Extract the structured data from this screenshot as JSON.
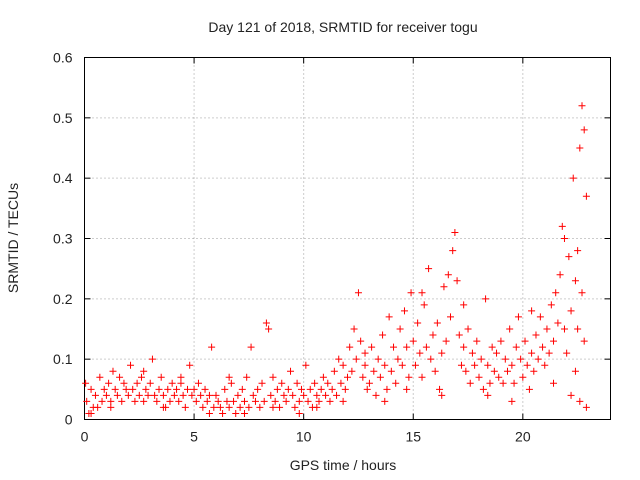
{
  "chart_data": {
    "type": "scatter",
    "title": "Day 121 of 2018, SRMTID for receiver togu",
    "xlabel": "GPS time / hours",
    "ylabel": "SRMTID / TECUs",
    "xlim": [
      0,
      24
    ],
    "ylim": [
      0,
      0.6
    ],
    "xticks": [
      0,
      5,
      10,
      15,
      20
    ],
    "xtick_labels": [
      "0",
      "5",
      "10",
      "15",
      "20"
    ],
    "yticks": [
      0,
      0.1,
      0.2,
      0.3,
      0.4,
      0.5,
      0.6
    ],
    "ytick_labels": [
      "0",
      "0.1",
      "0.2",
      "0.3",
      "0.4",
      "0.5",
      "0.6"
    ],
    "grid": true,
    "marker": "+",
    "marker_color": "#ff0000",
    "series": [
      {
        "name": "SRMTID",
        "points": [
          [
            0.05,
            0.06
          ],
          [
            0.1,
            0.03
          ],
          [
            0.2,
            0.01
          ],
          [
            0.3,
            0.05
          ],
          [
            0.4,
            0.02
          ],
          [
            0.5,
            0.04
          ],
          [
            0.6,
            0.02
          ],
          [
            0.7,
            0.07
          ],
          [
            0.8,
            0.03
          ],
          [
            0.9,
            0.05
          ],
          [
            1.0,
            0.04
          ],
          [
            1.1,
            0.06
          ],
          [
            1.2,
            0.03
          ],
          [
            1.3,
            0.08
          ],
          [
            1.4,
            0.05
          ],
          [
            1.5,
            0.04
          ],
          [
            1.6,
            0.07
          ],
          [
            1.7,
            0.03
          ],
          [
            1.8,
            0.06
          ],
          [
            1.9,
            0.05
          ],
          [
            2.0,
            0.04
          ],
          [
            2.1,
            0.09
          ],
          [
            2.2,
            0.05
          ],
          [
            2.3,
            0.03
          ],
          [
            2.4,
            0.06
          ],
          [
            2.5,
            0.04
          ],
          [
            2.6,
            0.07
          ],
          [
            2.7,
            0.03
          ],
          [
            2.8,
            0.05
          ],
          [
            2.9,
            0.04
          ],
          [
            3.0,
            0.06
          ],
          [
            3.1,
            0.1
          ],
          [
            3.2,
            0.04
          ],
          [
            3.3,
            0.03
          ],
          [
            3.4,
            0.05
          ],
          [
            3.5,
            0.07
          ],
          [
            3.6,
            0.04
          ],
          [
            3.7,
            0.02
          ],
          [
            3.8,
            0.05
          ],
          [
            3.9,
            0.03
          ],
          [
            4.0,
            0.06
          ],
          [
            4.1,
            0.04
          ],
          [
            4.2,
            0.05
          ],
          [
            4.3,
            0.03
          ],
          [
            4.4,
            0.07
          ],
          [
            4.5,
            0.04
          ],
          [
            4.6,
            0.02
          ],
          [
            4.7,
            0.05
          ],
          [
            4.8,
            0.09
          ],
          [
            4.9,
            0.04
          ],
          [
            5.0,
            0.05
          ],
          [
            5.1,
            0.03
          ],
          [
            5.2,
            0.06
          ],
          [
            5.3,
            0.04
          ],
          [
            5.4,
            0.02
          ],
          [
            5.5,
            0.05
          ],
          [
            5.6,
            0.03
          ],
          [
            5.7,
            0.04
          ],
          [
            5.8,
            0.12
          ],
          [
            5.9,
            0.02
          ],
          [
            6.0,
            0.04
          ],
          [
            6.1,
            0.03
          ],
          [
            6.2,
            0.02
          ],
          [
            6.3,
            0.01
          ],
          [
            6.4,
            0.05
          ],
          [
            6.5,
            0.03
          ],
          [
            6.6,
            0.02
          ],
          [
            6.7,
            0.06
          ],
          [
            6.8,
            0.03
          ],
          [
            6.9,
            0.01
          ],
          [
            7.0,
            0.04
          ],
          [
            7.1,
            0.02
          ],
          [
            7.2,
            0.05
          ],
          [
            7.3,
            0.03
          ],
          [
            7.4,
            0.07
          ],
          [
            7.5,
            0.02
          ],
          [
            7.6,
            0.12
          ],
          [
            7.7,
            0.04
          ],
          [
            7.8,
            0.03
          ],
          [
            7.9,
            0.05
          ],
          [
            8.0,
            0.02
          ],
          [
            8.1,
            0.06
          ],
          [
            8.2,
            0.03
          ],
          [
            8.3,
            0.16
          ],
          [
            8.4,
            0.15
          ],
          [
            8.5,
            0.04
          ],
          [
            8.6,
            0.07
          ],
          [
            8.7,
            0.03
          ],
          [
            8.8,
            0.05
          ],
          [
            8.9,
            0.02
          ],
          [
            9.0,
            0.06
          ],
          [
            9.1,
            0.04
          ],
          [
            9.2,
            0.03
          ],
          [
            9.3,
            0.05
          ],
          [
            9.4,
            0.08
          ],
          [
            9.5,
            0.04
          ],
          [
            9.6,
            0.02
          ],
          [
            9.7,
            0.06
          ],
          [
            9.8,
            0.03
          ],
          [
            9.9,
            0.05
          ],
          [
            10.0,
            0.04
          ],
          [
            10.1,
            0.09
          ],
          [
            10.2,
            0.03
          ],
          [
            10.3,
            0.05
          ],
          [
            10.4,
            0.02
          ],
          [
            10.5,
            0.06
          ],
          [
            10.6,
            0.04
          ],
          [
            10.7,
            0.03
          ],
          [
            10.8,
            0.05
          ],
          [
            10.9,
            0.07
          ],
          [
            11.0,
            0.04
          ],
          [
            11.1,
            0.06
          ],
          [
            11.2,
            0.03
          ],
          [
            11.3,
            0.05
          ],
          [
            11.4,
            0.08
          ],
          [
            11.5,
            0.04
          ],
          [
            11.6,
            0.1
          ],
          [
            11.7,
            0.06
          ],
          [
            11.8,
            0.09
          ],
          [
            11.9,
            0.05
          ],
          [
            12.0,
            0.07
          ],
          [
            12.1,
            0.12
          ],
          [
            12.2,
            0.08
          ],
          [
            12.3,
            0.15
          ],
          [
            12.4,
            0.1
          ],
          [
            12.5,
            0.21
          ],
          [
            12.6,
            0.13
          ],
          [
            12.7,
            0.07
          ],
          [
            12.8,
            0.09
          ],
          [
            12.9,
            0.05
          ],
          [
            13.0,
            0.06
          ],
          [
            13.1,
            0.12
          ],
          [
            13.2,
            0.08
          ],
          [
            13.3,
            0.04
          ],
          [
            13.4,
            0.1
          ],
          [
            13.5,
            0.07
          ],
          [
            13.6,
            0.14
          ],
          [
            13.7,
            0.09
          ],
          [
            13.8,
            0.05
          ],
          [
            13.9,
            0.17
          ],
          [
            14.0,
            0.08
          ],
          [
            14.1,
            0.12
          ],
          [
            14.2,
            0.06
          ],
          [
            14.3,
            0.1
          ],
          [
            14.4,
            0.15
          ],
          [
            14.5,
            0.09
          ],
          [
            14.6,
            0.18
          ],
          [
            14.7,
            0.12
          ],
          [
            14.8,
            0.07
          ],
          [
            14.9,
            0.21
          ],
          [
            15.0,
            0.13
          ],
          [
            15.1,
            0.09
          ],
          [
            15.2,
            0.16
          ],
          [
            15.3,
            0.11
          ],
          [
            15.4,
            0.07
          ],
          [
            15.5,
            0.19
          ],
          [
            15.6,
            0.12
          ],
          [
            15.7,
            0.25
          ],
          [
            15.8,
            0.1
          ],
          [
            15.9,
            0.14
          ],
          [
            16.0,
            0.08
          ],
          [
            16.1,
            0.16
          ],
          [
            16.2,
            0.05
          ],
          [
            16.3,
            0.11
          ],
          [
            16.4,
            0.22
          ],
          [
            16.5,
            0.13
          ],
          [
            16.6,
            0.24
          ],
          [
            16.7,
            0.17
          ],
          [
            16.8,
            0.28
          ],
          [
            16.9,
            0.31
          ],
          [
            17.0,
            0.23
          ],
          [
            17.1,
            0.14
          ],
          [
            17.2,
            0.09
          ],
          [
            17.3,
            0.12
          ],
          [
            17.4,
            0.08
          ],
          [
            17.5,
            0.15
          ],
          [
            17.6,
            0.06
          ],
          [
            17.7,
            0.11
          ],
          [
            17.8,
            0.09
          ],
          [
            17.9,
            0.13
          ],
          [
            18.0,
            0.07
          ],
          [
            18.1,
            0.1
          ],
          [
            18.2,
            0.05
          ],
          [
            18.3,
            0.2
          ],
          [
            18.4,
            0.09
          ],
          [
            18.5,
            0.06
          ],
          [
            18.6,
            0.12
          ],
          [
            18.7,
            0.08
          ],
          [
            18.8,
            0.11
          ],
          [
            18.9,
            0.07
          ],
          [
            19.0,
            0.13
          ],
          [
            19.1,
            0.06
          ],
          [
            19.2,
            0.1
          ],
          [
            19.3,
            0.08
          ],
          [
            19.4,
            0.15
          ],
          [
            19.5,
            0.09
          ],
          [
            19.6,
            0.06
          ],
          [
            19.7,
            0.12
          ],
          [
            19.8,
            0.17
          ],
          [
            19.9,
            0.1
          ],
          [
            20.0,
            0.07
          ],
          [
            20.1,
            0.13
          ],
          [
            20.2,
            0.09
          ],
          [
            20.3,
            0.05
          ],
          [
            20.4,
            0.11
          ],
          [
            20.5,
            0.08
          ],
          [
            20.6,
            0.14
          ],
          [
            20.7,
            0.1
          ],
          [
            20.8,
            0.17
          ],
          [
            20.9,
            0.12
          ],
          [
            21.0,
            0.09
          ],
          [
            21.1,
            0.15
          ],
          [
            21.2,
            0.11
          ],
          [
            21.3,
            0.19
          ],
          [
            21.4,
            0.13
          ],
          [
            21.5,
            0.21
          ],
          [
            21.6,
            0.16
          ],
          [
            21.7,
            0.24
          ],
          [
            21.8,
            0.32
          ],
          [
            21.9,
            0.15
          ],
          [
            22.0,
            0.11
          ],
          [
            22.1,
            0.27
          ],
          [
            22.2,
            0.18
          ],
          [
            22.3,
            0.4
          ],
          [
            22.4,
            0.23
          ],
          [
            22.5,
            0.15
          ],
          [
            22.6,
            0.45
          ],
          [
            22.7,
            0.52
          ],
          [
            22.8,
            0.48
          ],
          [
            22.9,
            0.37
          ],
          [
            0.3,
            0.01
          ],
          [
            1.2,
            0.02
          ],
          [
            2.7,
            0.08
          ],
          [
            3.6,
            0.02
          ],
          [
            4.4,
            0.06
          ],
          [
            5.7,
            0.01
          ],
          [
            6.6,
            0.07
          ],
          [
            7.3,
            0.01
          ],
          [
            8.6,
            0.02
          ],
          [
            9.8,
            0.01
          ],
          [
            10.6,
            0.02
          ],
          [
            11.8,
            0.03
          ],
          [
            12.8,
            0.11
          ],
          [
            13.7,
            0.03
          ],
          [
            14.7,
            0.05
          ],
          [
            15.4,
            0.21
          ],
          [
            16.3,
            0.04
          ],
          [
            17.3,
            0.19
          ],
          [
            18.4,
            0.04
          ],
          [
            19.5,
            0.03
          ],
          [
            20.4,
            0.18
          ],
          [
            21.4,
            0.06
          ],
          [
            22.2,
            0.04
          ],
          [
            22.6,
            0.03
          ],
          [
            22.9,
            0.02
          ],
          [
            22.7,
            0.21
          ],
          [
            22.4,
            0.08
          ],
          [
            21.9,
            0.3
          ],
          [
            22.8,
            0.13
          ],
          [
            22.5,
            0.28
          ]
        ]
      }
    ]
  }
}
